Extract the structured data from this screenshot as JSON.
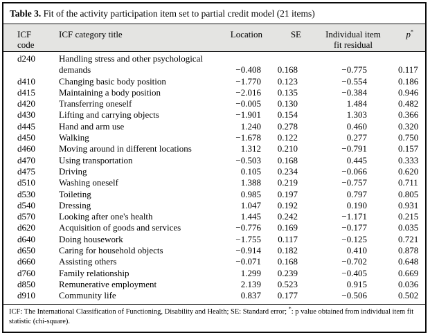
{
  "table": {
    "title_label": "Table 3.",
    "title_rest": "Fit of the activity participation item set to partial credit model (21 items)",
    "columns": [
      {
        "label": "ICF code"
      },
      {
        "label": "ICF category title"
      },
      {
        "label": "Location"
      },
      {
        "label": "SE"
      },
      {
        "label": "Individual item",
        "label2": "fit residual"
      },
      {
        "label": "p",
        "sup": "*"
      }
    ],
    "rows": [
      [
        "d240",
        "Handling stress and other psychological demands",
        "−0.408",
        "0.168",
        "−0.775",
        "0.117"
      ],
      [
        "d410",
        "Changing basic body position",
        "−1.770",
        "0.123",
        "−0.554",
        "0.186"
      ],
      [
        "d415",
        "Maintaining a body position",
        "−2.016",
        "0.135",
        "−0.384",
        "0.946"
      ],
      [
        "d420",
        "Transferring oneself",
        "−0.005",
        "0.130",
        "1.484",
        "0.482"
      ],
      [
        "d430",
        "Lifting and carrying objects",
        "−1.901",
        "0.154",
        "1.303",
        "0.366"
      ],
      [
        "d445",
        "Hand and arm use",
        "1.240",
        "0.278",
        "0.460",
        "0.320"
      ],
      [
        "d450",
        "Walking",
        "−1.678",
        "0.122",
        "0.277",
        "0.750"
      ],
      [
        "d460",
        "Moving around in different locations",
        "1.312",
        "0.210",
        "−0.791",
        "0.157"
      ],
      [
        "d470",
        "Using transportation",
        "−0.503",
        "0.168",
        "0.445",
        "0.333"
      ],
      [
        "d475",
        "Driving",
        "0.105",
        "0.234",
        "−0.066",
        "0.620"
      ],
      [
        "d510",
        "Washing oneself",
        "1.388",
        "0.219",
        "−0.757",
        "0.711"
      ],
      [
        "d530",
        "Toileting",
        "0.985",
        "0.197",
        "0.797",
        "0.805"
      ],
      [
        "d540",
        "Dressing",
        "1.047",
        "0.192",
        "0.190",
        "0.931"
      ],
      [
        "d570",
        "Looking after one's health",
        "1.445",
        "0.242",
        "−1.171",
        "0.215"
      ],
      [
        "d620",
        "Acquisition of goods and services",
        "−0.776",
        "0.169",
        "−0.177",
        "0.035"
      ],
      [
        "d640",
        "Doing housework",
        "−1.755",
        "0.117",
        "−0.125",
        "0.721"
      ],
      [
        "d650",
        "Caring for household objects",
        "−0.914",
        "0.182",
        "0.410",
        "0.878"
      ],
      [
        "d660",
        "Assisting others",
        "−0.071",
        "0.168",
        "−0.702",
        "0.648"
      ],
      [
        "d760",
        "Family relationship",
        "1.299",
        "0.239",
        "−0.405",
        "0.669"
      ],
      [
        "d850",
        "Remunerative employment",
        "2.139",
        "0.523",
        "0.915",
        "0.036"
      ],
      [
        "d910",
        "Community life",
        "0.837",
        "0.177",
        "−0.506",
        "0.502"
      ]
    ],
    "footnote": {
      "part1": "ICF: The International Classification of Functioning, Disability and Health; SE: Standard error; ",
      "sup": "*",
      "part2": ": p value obtained from individual item fit statistic (chi-square)."
    },
    "colors": {
      "header_background": "#e4e4e2",
      "border": "#0a0a0a"
    }
  }
}
